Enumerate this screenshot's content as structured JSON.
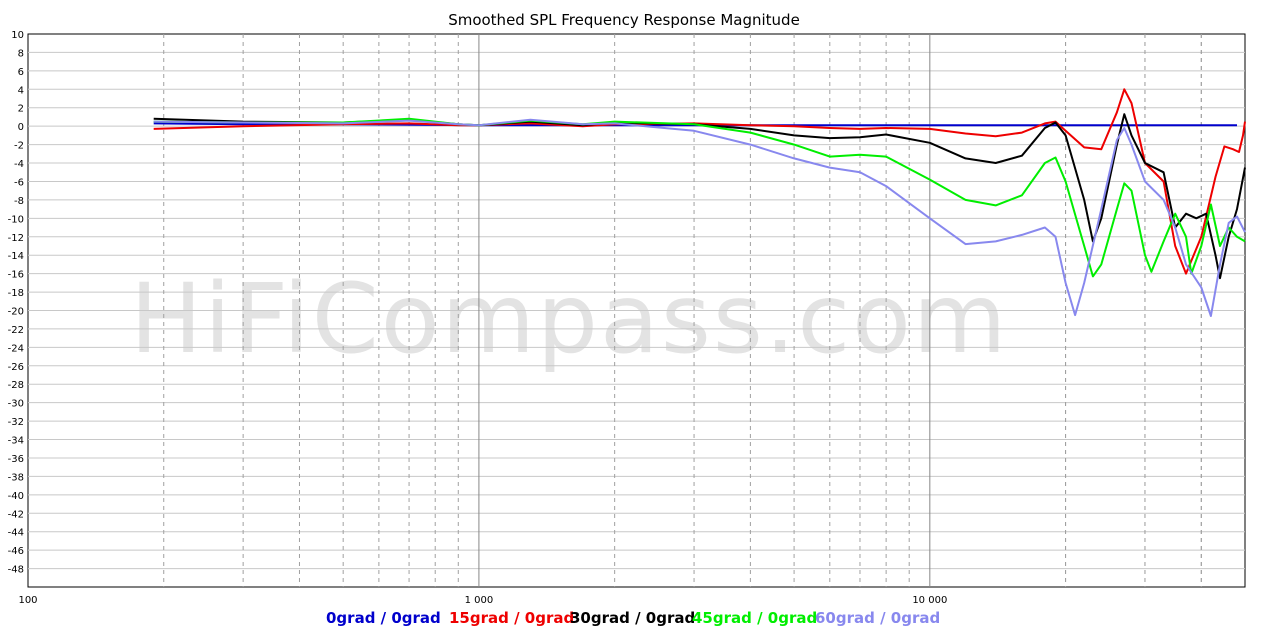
{
  "chart_data": {
    "type": "line",
    "title": "Smoothed SPL Frequency Response Magnitude",
    "watermark": "HiFiCompass.com",
    "x_scale": "log",
    "xlim": [
      100,
      50000
    ],
    "ylim": [
      -50,
      10
    ],
    "grid": true,
    "legend_position": "bottom",
    "x_tick_labels": [
      {
        "value": 100,
        "label": "100"
      },
      {
        "value": 1000,
        "label": "1 000"
      },
      {
        "value": 10000,
        "label": "10 000"
      }
    ],
    "y_ticks": [
      10,
      8,
      6,
      4,
      2,
      0,
      -2,
      -4,
      -6,
      -8,
      -10,
      -12,
      -14,
      -16,
      -18,
      -20,
      -22,
      -24,
      -26,
      -28,
      -30,
      -32,
      -34,
      -36,
      -38,
      -40,
      -42,
      -44,
      -46,
      -48
    ],
    "series": [
      {
        "name": "0grad / 0grad",
        "color": "#0000cc",
        "points": [
          [
            190,
            0.3
          ],
          [
            300,
            0.2
          ],
          [
            500,
            0.2
          ],
          [
            1000,
            0.1
          ],
          [
            2000,
            0.1
          ],
          [
            5000,
            0.1
          ],
          [
            10000,
            0.1
          ],
          [
            20000,
            0.1
          ],
          [
            48000,
            0.1
          ]
        ]
      },
      {
        "name": "15grad / 0grad",
        "color": "#ee0000",
        "points": [
          [
            190,
            -0.3
          ],
          [
            300,
            0
          ],
          [
            500,
            0.2
          ],
          [
            700,
            0.3
          ],
          [
            900,
            0.1
          ],
          [
            1000,
            0.1
          ],
          [
            1300,
            0.3
          ],
          [
            1700,
            0
          ],
          [
            2000,
            0.2
          ],
          [
            3000,
            0.3
          ],
          [
            4000,
            0.1
          ],
          [
            5000,
            0
          ],
          [
            6000,
            -0.2
          ],
          [
            7000,
            -0.3
          ],
          [
            8000,
            -0.2
          ],
          [
            10000,
            -0.3
          ],
          [
            12000,
            -0.8
          ],
          [
            14000,
            -1.1
          ],
          [
            16000,
            -0.7
          ],
          [
            18000,
            0.3
          ],
          [
            19000,
            0.5
          ],
          [
            20000,
            -0.5
          ],
          [
            22000,
            -2.3
          ],
          [
            24000,
            -2.5
          ],
          [
            26000,
            1.5
          ],
          [
            27000,
            4.0
          ],
          [
            28000,
            2.5
          ],
          [
            30000,
            -4.0
          ],
          [
            33000,
            -6.0
          ],
          [
            35000,
            -13.0
          ],
          [
            37000,
            -16.0
          ],
          [
            40000,
            -12.0
          ],
          [
            43000,
            -5.5
          ],
          [
            45000,
            -2.2
          ],
          [
            47000,
            -2.5
          ],
          [
            48500,
            -2.8
          ],
          [
            49500,
            -1.0
          ],
          [
            50000,
            0.5
          ]
        ]
      },
      {
        "name": "30grad / 0grad",
        "color": "#000000",
        "points": [
          [
            190,
            0.8
          ],
          [
            300,
            0.5
          ],
          [
            500,
            0.4
          ],
          [
            700,
            0.7
          ],
          [
            900,
            0.2
          ],
          [
            1000,
            0.1
          ],
          [
            1300,
            0.5
          ],
          [
            1700,
            0.1
          ],
          [
            2000,
            0.4
          ],
          [
            3000,
            0.2
          ],
          [
            4000,
            -0.3
          ],
          [
            5000,
            -1.0
          ],
          [
            6000,
            -1.3
          ],
          [
            7000,
            -1.2
          ],
          [
            8000,
            -0.9
          ],
          [
            10000,
            -1.8
          ],
          [
            12000,
            -3.5
          ],
          [
            14000,
            -4.0
          ],
          [
            16000,
            -3.2
          ],
          [
            18000,
            -0.2
          ],
          [
            19000,
            0.4
          ],
          [
            20000,
            -1.0
          ],
          [
            22000,
            -8.0
          ],
          [
            23000,
            -12.5
          ],
          [
            24000,
            -10.0
          ],
          [
            26000,
            -2.0
          ],
          [
            27000,
            1.3
          ],
          [
            28000,
            -1.0
          ],
          [
            30000,
            -4.0
          ],
          [
            33000,
            -5.0
          ],
          [
            35000,
            -11.0
          ],
          [
            37000,
            -9.5
          ],
          [
            39000,
            -10.0
          ],
          [
            41000,
            -9.5
          ],
          [
            43000,
            -14.0
          ],
          [
            44000,
            -16.5
          ],
          [
            46000,
            -12.0
          ],
          [
            48000,
            -9.0
          ],
          [
            50000,
            -4.5
          ]
        ]
      },
      {
        "name": "45grad / 0grad",
        "color": "#00ee00",
        "points": [
          [
            190,
            0.5
          ],
          [
            300,
            0.4
          ],
          [
            500,
            0.4
          ],
          [
            700,
            0.8
          ],
          [
            900,
            0.2
          ],
          [
            1000,
            0.1
          ],
          [
            1300,
            0.6
          ],
          [
            1700,
            0.2
          ],
          [
            2000,
            0.5
          ],
          [
            3000,
            0.2
          ],
          [
            4000,
            -0.7
          ],
          [
            5000,
            -2.0
          ],
          [
            6000,
            -3.3
          ],
          [
            7000,
            -3.1
          ],
          [
            8000,
            -3.3
          ],
          [
            10000,
            -5.8
          ],
          [
            12000,
            -8.0
          ],
          [
            14000,
            -8.6
          ],
          [
            16000,
            -7.5
          ],
          [
            18000,
            -4.0
          ],
          [
            19000,
            -3.4
          ],
          [
            20000,
            -6.0
          ],
          [
            22000,
            -13.0
          ],
          [
            23000,
            -16.3
          ],
          [
            24000,
            -15.0
          ],
          [
            26000,
            -9.0
          ],
          [
            27000,
            -6.2
          ],
          [
            28000,
            -7.0
          ],
          [
            30000,
            -14.0
          ],
          [
            31000,
            -15.8
          ],
          [
            33000,
            -12.5
          ],
          [
            35000,
            -9.5
          ],
          [
            37000,
            -12.0
          ],
          [
            38000,
            -16.0
          ],
          [
            40000,
            -13.0
          ],
          [
            42000,
            -8.5
          ],
          [
            44000,
            -13.0
          ],
          [
            46000,
            -11.0
          ],
          [
            48000,
            -12.0
          ],
          [
            50000,
            -12.5
          ]
        ]
      },
      {
        "name": "60grad / 0grad",
        "color": "#8888ee",
        "points": [
          [
            190,
            0.5
          ],
          [
            300,
            0.4
          ],
          [
            500,
            0.3
          ],
          [
            700,
            0.6
          ],
          [
            900,
            0.2
          ],
          [
            1000,
            0.1
          ],
          [
            1300,
            0.7
          ],
          [
            1700,
            0.2
          ],
          [
            2000,
            0.3
          ],
          [
            3000,
            -0.5
          ],
          [
            4000,
            -2.0
          ],
          [
            5000,
            -3.5
          ],
          [
            6000,
            -4.5
          ],
          [
            7000,
            -5.0
          ],
          [
            8000,
            -6.5
          ],
          [
            10000,
            -10.0
          ],
          [
            12000,
            -12.8
          ],
          [
            14000,
            -12.5
          ],
          [
            16000,
            -11.8
          ],
          [
            18000,
            -11.0
          ],
          [
            19000,
            -12.0
          ],
          [
            20000,
            -17.0
          ],
          [
            21000,
            -20.5
          ],
          [
            22000,
            -17.0
          ],
          [
            24000,
            -9.0
          ],
          [
            26000,
            -1.5
          ],
          [
            27000,
            -0.2
          ],
          [
            28000,
            -2.0
          ],
          [
            30000,
            -6.0
          ],
          [
            33000,
            -8.0
          ],
          [
            35000,
            -11.0
          ],
          [
            37000,
            -15.0
          ],
          [
            40000,
            -17.5
          ],
          [
            42000,
            -20.6
          ],
          [
            44000,
            -15.0
          ],
          [
            46000,
            -10.5
          ],
          [
            48000,
            -9.8
          ],
          [
            50000,
            -11.5
          ]
        ]
      }
    ]
  }
}
